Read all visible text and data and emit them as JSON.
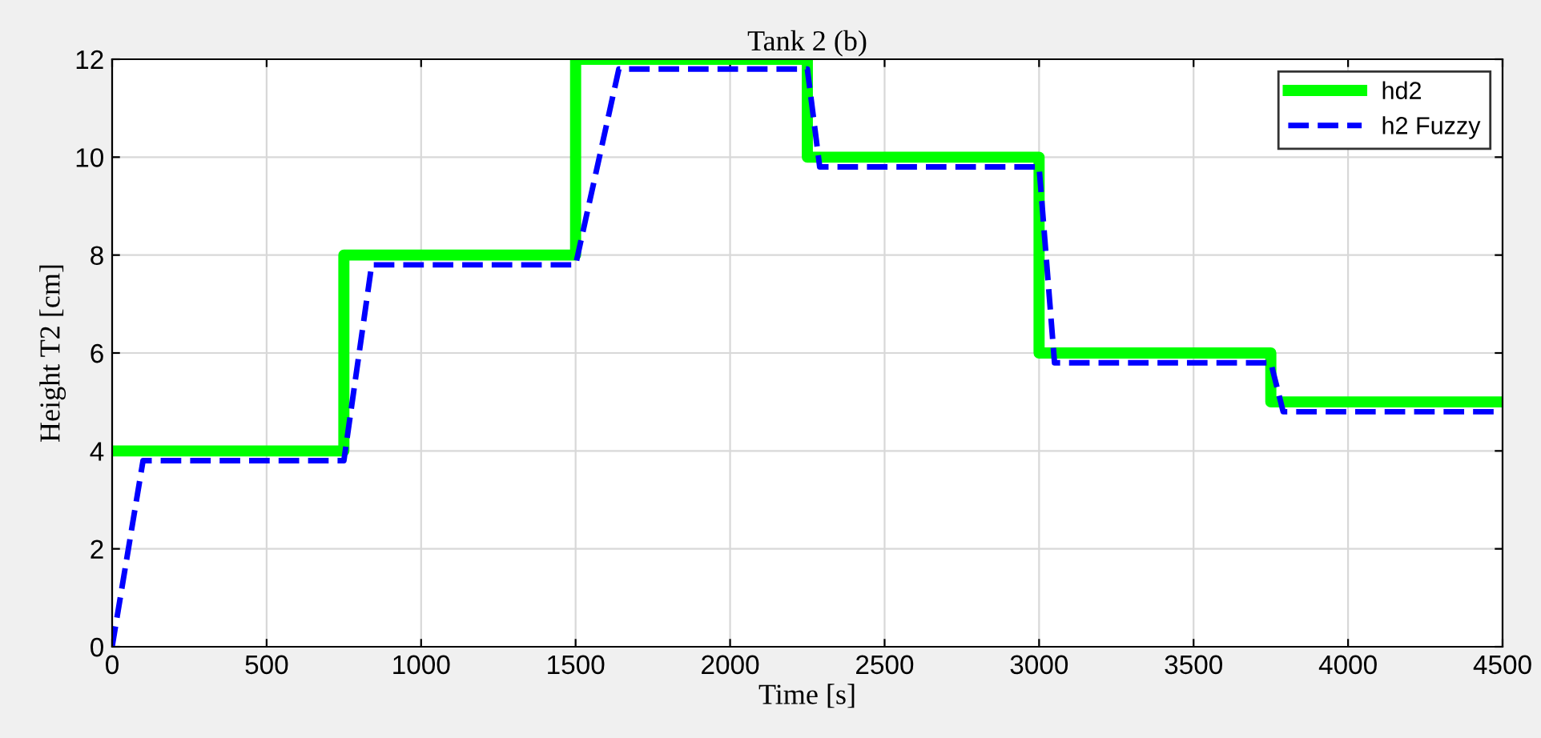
{
  "chart_data": {
    "type": "line",
    "title": "Tank 2 (b)",
    "xlabel": "Time [s]",
    "ylabel": "Height T2 [cm]",
    "xlim": [
      0,
      4500
    ],
    "ylim": [
      0,
      12
    ],
    "xticks": [
      0,
      500,
      1000,
      1500,
      2000,
      2500,
      3000,
      3500,
      4000,
      4500
    ],
    "yticks": [
      0,
      2,
      4,
      6,
      8,
      10,
      12
    ],
    "grid": true,
    "legend": "top right",
    "series": [
      {
        "name": "hd2",
        "color": "#00ff00",
        "line_style": "solid",
        "x": [
          0,
          750,
          750,
          1500,
          1500,
          2250,
          2250,
          3000,
          3000,
          3750,
          3750,
          4500
        ],
        "values": [
          4,
          4,
          8,
          8,
          12,
          12,
          10,
          10,
          6,
          6,
          5,
          5
        ]
      },
      {
        "name": "h2 Fuzzy",
        "color": "#0000ff",
        "line_style": "dashed",
        "x": [
          0,
          100,
          750,
          840,
          1500,
          1640,
          2250,
          2290,
          3000,
          3050,
          3750,
          3790,
          4500
        ],
        "values": [
          0,
          3.8,
          3.8,
          7.8,
          7.8,
          11.8,
          11.8,
          9.8,
          9.8,
          5.8,
          5.8,
          4.8,
          4.8
        ]
      }
    ]
  }
}
